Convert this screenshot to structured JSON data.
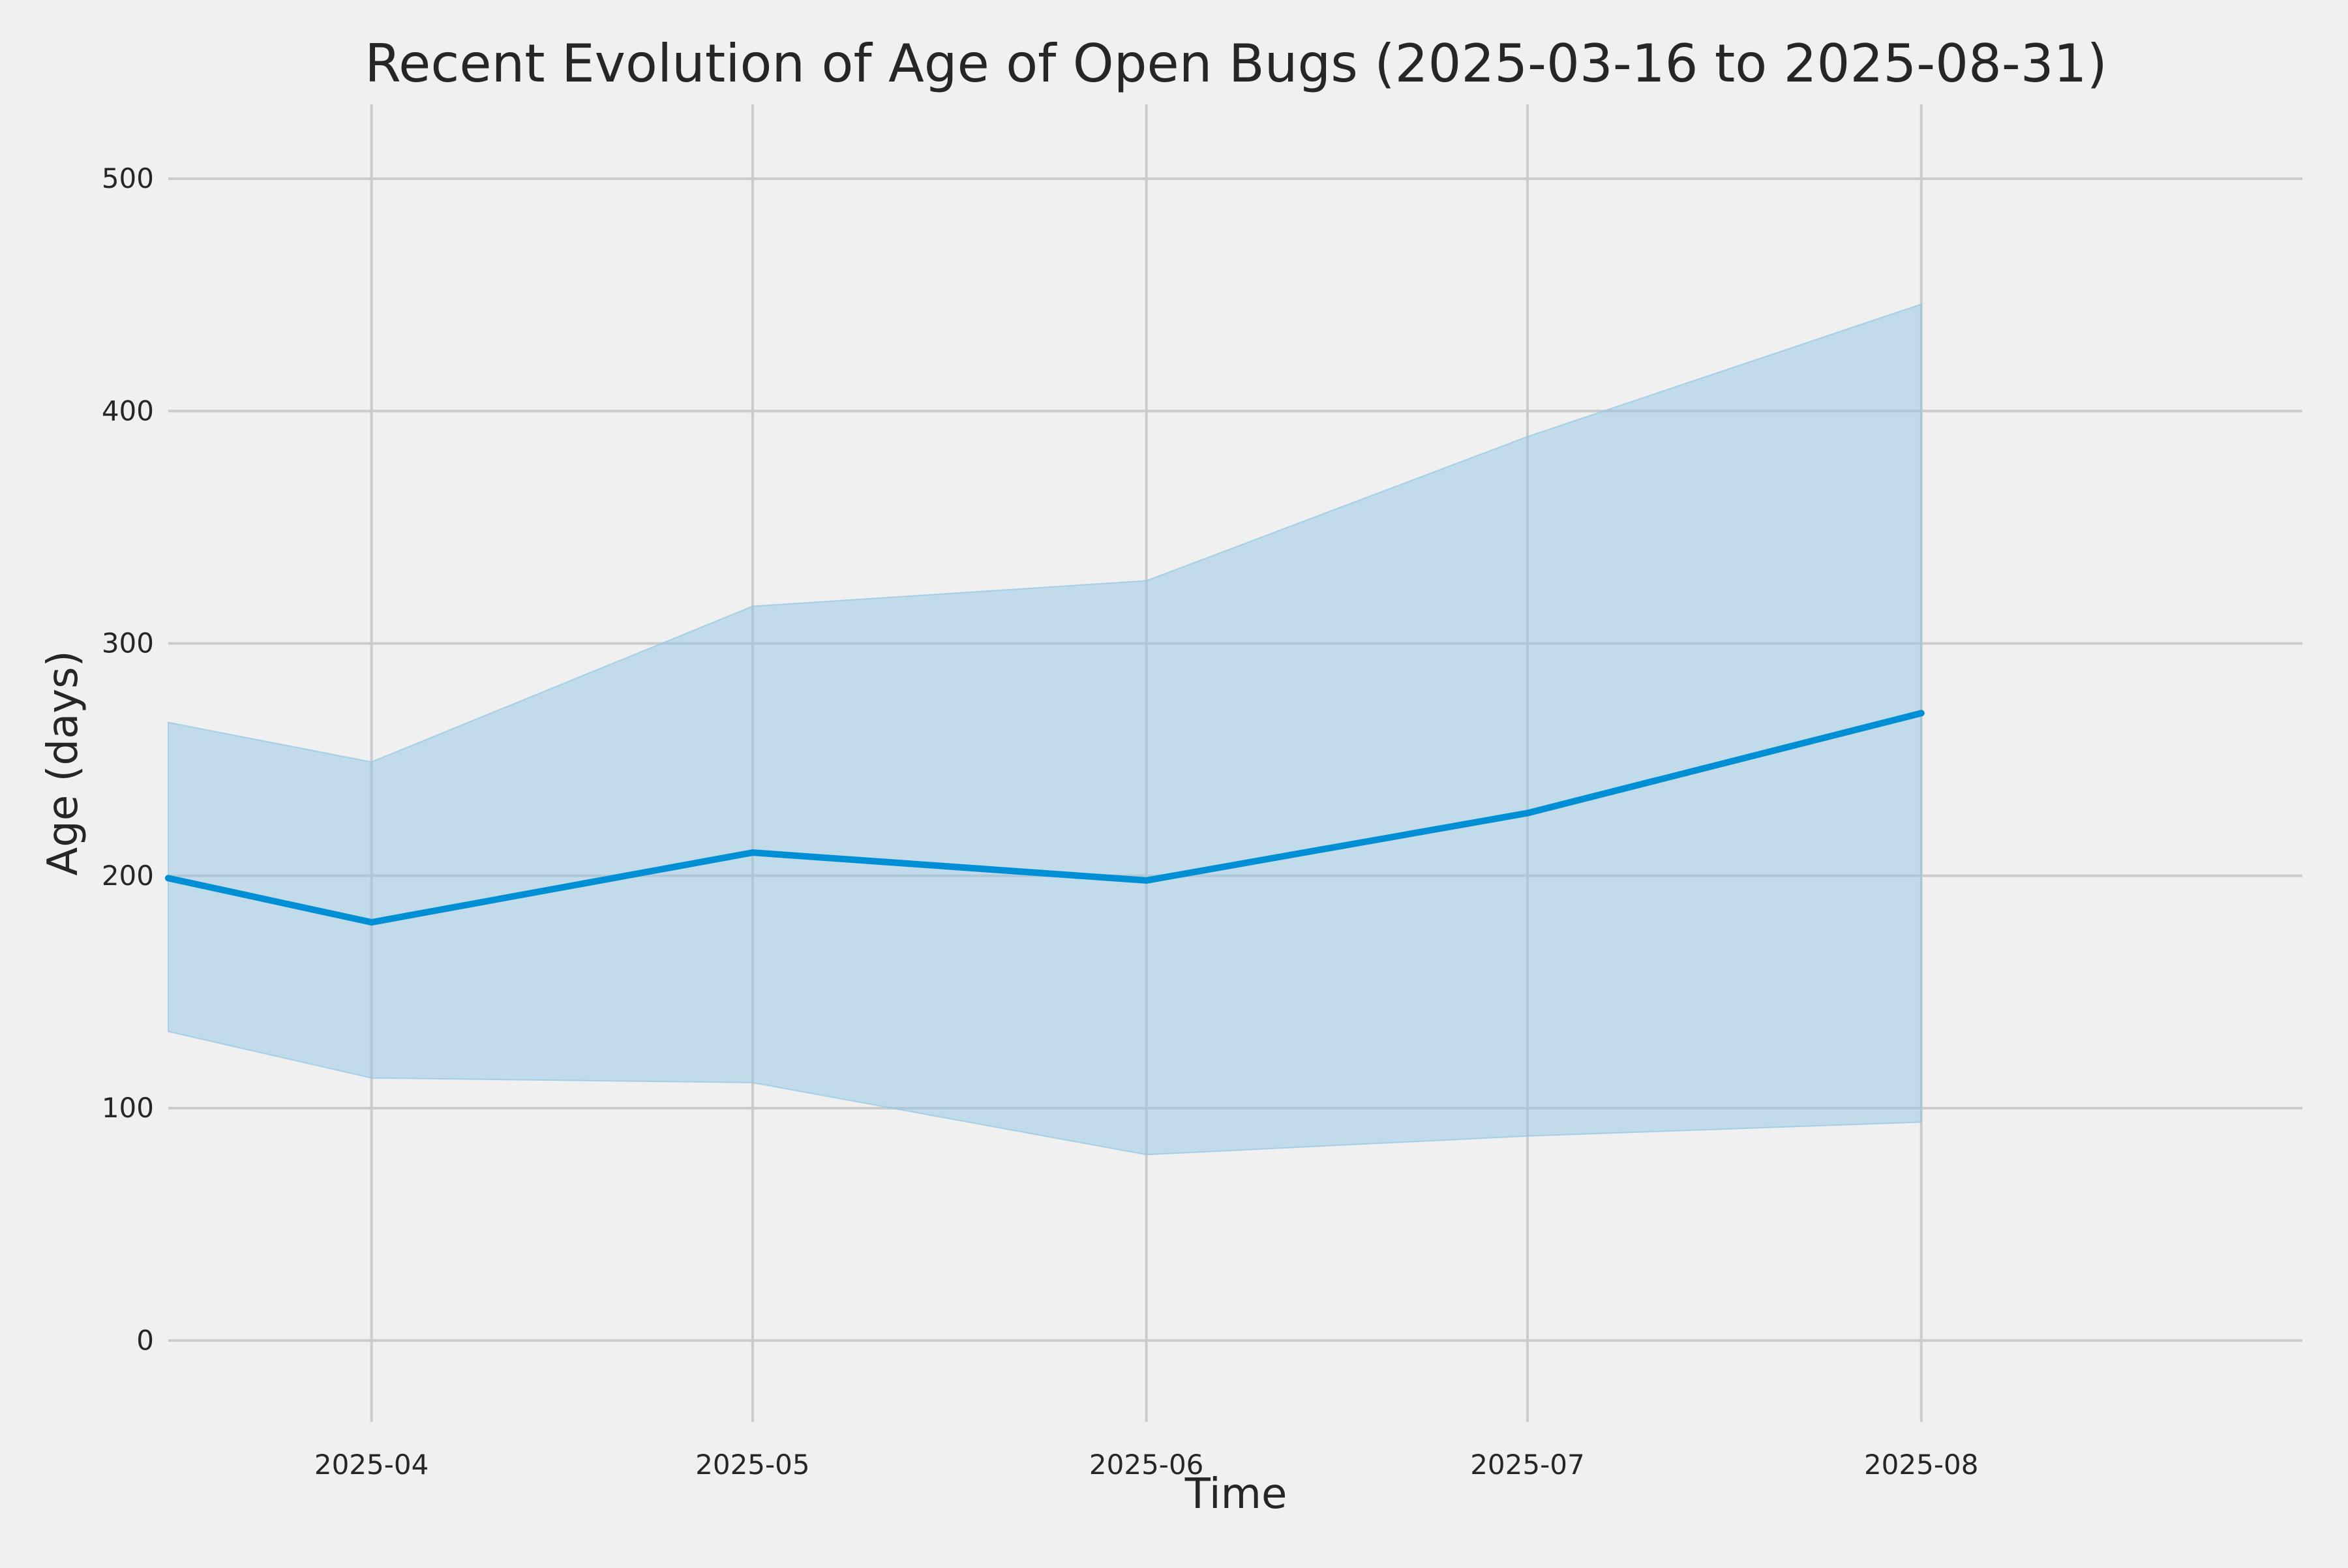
{
  "chart_data": {
    "type": "line",
    "title": "Recent Evolution of Age of Open Bugs (2025-03-16 to 2025-08-31)",
    "xlabel": "Time",
    "ylabel": "Age (days)",
    "x": [
      "2025-03-16",
      "2025-04-01",
      "2025-05-01",
      "2025-06-01",
      "2025-07-01",
      "2025-08-01"
    ],
    "series": [
      {
        "values": [
          199,
          180,
          210,
          198,
          227,
          270
        ],
        "band_lower": [
          133,
          113,
          111,
          80,
          88,
          94
        ],
        "band_upper": [
          266,
          249,
          316,
          327,
          389,
          446
        ]
      }
    ],
    "xlim": [
      "2025-03-16",
      "2025-08-31"
    ],
    "ylim": [
      -35,
      532
    ],
    "x_ticks": [
      "2025-04-01",
      "2025-05-01",
      "2025-06-01",
      "2025-07-01",
      "2025-08-01"
    ],
    "x_tick_labels": [
      "2025-04",
      "2025-05",
      "2025-06",
      "2025-07",
      "2025-08"
    ],
    "y_ticks": [
      0,
      100,
      200,
      300,
      400,
      500
    ],
    "y_tick_labels": [
      "0",
      "100",
      "200",
      "300",
      "400",
      "500"
    ],
    "grid": true,
    "line_color": "#008fd5",
    "band_color": "#91c6e3",
    "grid_color": "#cbcbcb",
    "text_color": "#262626",
    "background": "#f0f0f0"
  }
}
